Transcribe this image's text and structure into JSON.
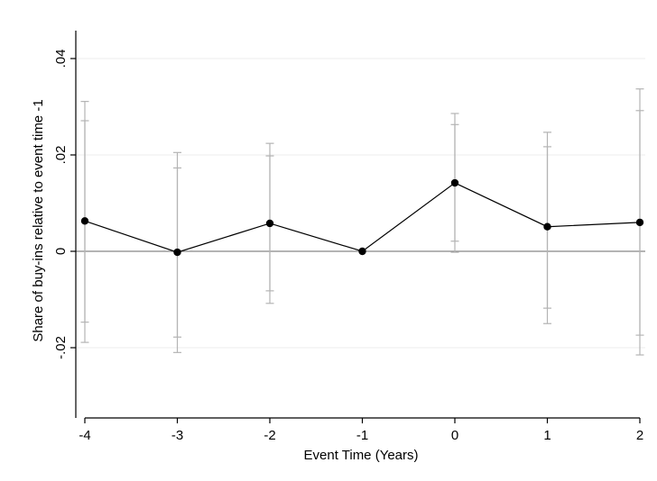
{
  "chart_data": {
    "type": "scatter",
    "xlabel": "Event Time (Years)",
    "ylabel": "Share of buy-ins relative to event time -1",
    "xlim": [
      -4,
      2
    ],
    "ylim": [
      -0.021,
      0.04
    ],
    "x_ticks": [
      -4,
      -3,
      -2,
      -1,
      0,
      1,
      2
    ],
    "x_tick_labels": [
      "-4",
      "-3",
      "-2",
      "-1",
      "0",
      "1",
      "2"
    ],
    "y_ticks": [
      -0.02,
      0,
      0.02,
      0.04
    ],
    "y_tick_labels": [
      "-.02",
      "0",
      ".02",
      ".04"
    ],
    "grid": true,
    "reference_line_y": 0,
    "series": [
      {
        "x": [
          -4,
          -3,
          -2,
          -1,
          0,
          1,
          2
        ],
        "y": [
          0.0063,
          -0.0002,
          0.0058,
          0.0,
          0.0142,
          0.0051,
          0.006
        ],
        "ci_95": [
          [
            -0.0189,
            0.0311
          ],
          [
            -0.021,
            0.0205
          ],
          [
            -0.0108,
            0.0224
          ],
          [
            0.0,
            0.0
          ],
          [
            -0.0002,
            0.0286
          ],
          [
            -0.015,
            0.0247
          ],
          [
            -0.0215,
            0.0337
          ]
        ],
        "ci_90": [
          [
            -0.0147,
            0.0271
          ],
          [
            -0.0178,
            0.0173
          ],
          [
            -0.0082,
            0.0198
          ],
          [
            0.0,
            0.0
          ],
          [
            0.0021,
            0.0263
          ],
          [
            -0.0118,
            0.0217
          ],
          [
            -0.0174,
            0.0292
          ]
        ]
      }
    ],
    "colors": {
      "line": "#000000",
      "marker": "#000000",
      "ci": "#b4b4b4",
      "grid": "#ececec",
      "zero_line": "#888888",
      "axis": "#000000"
    }
  }
}
